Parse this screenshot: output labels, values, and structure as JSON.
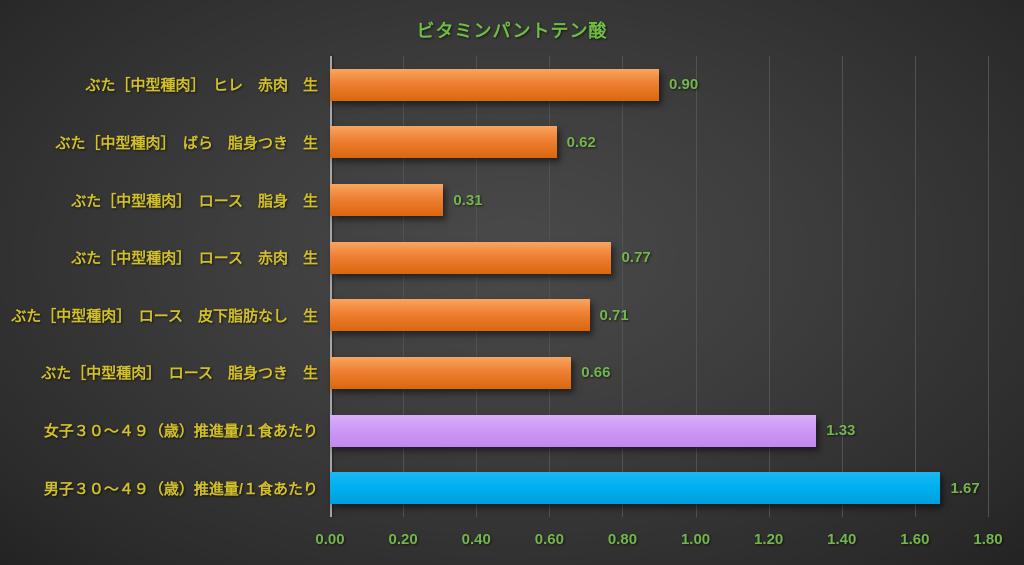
{
  "title": "ビタミンパントテン酸",
  "colors": {
    "title": "#6fbe44",
    "category_label": "#d2c029",
    "value_label": "#74b64c",
    "axis_tick": "#74b64c",
    "axis_line": "#a6a6a6",
    "gridline": "#525252",
    "bar_orange": "#ed7d31",
    "bar_purple": "#cc99f5",
    "bar_blue": "#00b0f0",
    "background": "#3d3d3d"
  },
  "chart_data": {
    "type": "bar",
    "orientation": "horizontal",
    "title": "ビタミンパントテン酸",
    "categories": [
      "ぶた［中型種肉］　ヒレ　赤肉　生",
      "ぶた［中型種肉］　ばら　脂身つき　生",
      "ぶた［中型種肉］　ロース　脂身　生",
      "ぶた［中型種肉］　ロース　赤肉　生",
      "ぶた［中型種肉］　ロース　皮下脂肪なし　生",
      "ぶた［中型種肉］　ロース　脂身つき　生",
      "女子３０～４９（歳）推進量/１食あたり",
      "男子３０～４９（歳）推進量/１食あたり"
    ],
    "values": [
      0.9,
      0.62,
      0.31,
      0.77,
      0.71,
      0.66,
      1.33,
      1.67
    ],
    "data_labels": [
      "0.90",
      "0.62",
      "0.31",
      "0.77",
      "0.71",
      "0.66",
      "1.33",
      "1.67"
    ],
    "bar_colors": [
      "orange",
      "orange",
      "orange",
      "orange",
      "orange",
      "orange",
      "purple",
      "blue"
    ],
    "xlabel": "",
    "ylabel": "",
    "xlim": [
      0.0,
      1.8
    ],
    "x_ticks": [
      "0.00",
      "0.20",
      "0.40",
      "0.60",
      "0.80",
      "1.00",
      "1.20",
      "1.40",
      "1.60",
      "1.80"
    ],
    "grid": true,
    "legend": false
  }
}
